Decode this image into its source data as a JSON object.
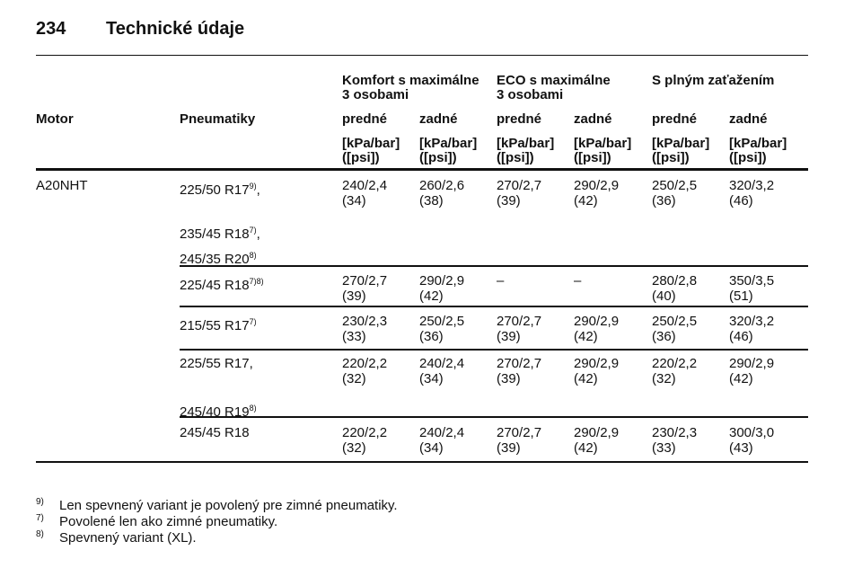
{
  "header": {
    "page": "234",
    "title": "Technické údaje"
  },
  "table": {
    "group_headers": [
      [
        "Komfort s maximálne",
        "3 osobami"
      ],
      [
        "ECO s maximálne",
        "3 osobami"
      ],
      [
        "S plným zaťažením"
      ]
    ],
    "column_headers": {
      "motor": "Motor",
      "tires": "Pneumatiky",
      "positions": [
        "predné",
        "zadné",
        "predné",
        "zadné",
        "predné",
        "zadné"
      ]
    },
    "units": [
      [
        "[kPa/bar]",
        "([psi])"
      ],
      [
        "[kPa/bar]",
        "([psi])"
      ],
      [
        "[kPa/bar]",
        "([psi])"
      ],
      [
        "[kPa/bar]",
        "([psi])"
      ],
      [
        "[kPa/bar]",
        "([psi])"
      ],
      [
        "[kPa/bar]",
        "([psi])"
      ]
    ],
    "rows": [
      {
        "motor": "A20NHT",
        "tires": [
          {
            "text": "225/50 R17",
            "sup": "9)",
            "suffix": ","
          },
          {
            "text": "235/45 R18",
            "sup": "7)",
            "suffix": ","
          },
          {
            "text": "245/35 R20",
            "sup": "8)"
          }
        ],
        "values": [
          [
            "240/2,4",
            "(34)"
          ],
          [
            "260/2,6",
            "(38)"
          ],
          [
            "270/2,7",
            "(39)"
          ],
          [
            "290/2,9",
            "(42)"
          ],
          [
            "250/2,5",
            "(36)"
          ],
          [
            "320/3,2",
            "(46)"
          ]
        ]
      },
      {
        "tires": [
          {
            "text": "225/45 R18",
            "sup": "7)8)"
          }
        ],
        "values": [
          [
            "270/2,7",
            "(39)"
          ],
          [
            "290/2,9",
            "(42)"
          ],
          [
            "–"
          ],
          [
            "–"
          ],
          [
            "280/2,8",
            "(40)"
          ],
          [
            "350/3,5",
            "(51)"
          ]
        ]
      },
      {
        "tires": [
          {
            "text": "215/55 R17",
            "sup": "7)"
          }
        ],
        "values": [
          [
            "230/2,3",
            "(33)"
          ],
          [
            "250/2,5",
            "(36)"
          ],
          [
            "270/2,7",
            "(39)"
          ],
          [
            "290/2,9",
            "(42)"
          ],
          [
            "250/2,5",
            "(36)"
          ],
          [
            "320/3,2",
            "(46)"
          ]
        ]
      },
      {
        "tires": [
          {
            "text": "225/55 R17",
            "suffix": ","
          },
          {
            "text": "245/40 R19",
            "sup": "8)"
          }
        ],
        "values": [
          [
            "220/2,2",
            "(32)"
          ],
          [
            "240/2,4",
            "(34)"
          ],
          [
            "270/2,7",
            "(39)"
          ],
          [
            "290/2,9",
            "(42)"
          ],
          [
            "220/2,2",
            "(32)"
          ],
          [
            "290/2,9",
            "(42)"
          ]
        ]
      },
      {
        "tires": [
          {
            "text": "245/45 R18"
          }
        ],
        "values": [
          [
            "220/2,2",
            "(32)"
          ],
          [
            "240/2,4",
            "(34)"
          ],
          [
            "270/2,7",
            "(39)"
          ],
          [
            "290/2,9",
            "(42)"
          ],
          [
            "230/2,3",
            "(33)"
          ],
          [
            "300/3,0",
            "(43)"
          ]
        ]
      }
    ]
  },
  "footnotes": [
    {
      "mark": "9)",
      "text": "Len spevnený variant je povolený pre zimné pneumatiky."
    },
    {
      "mark": "7)",
      "text": "Povolené len ako zimné pneumatiky."
    },
    {
      "mark": "8)",
      "text": "Spevnený variant (XL)."
    }
  ]
}
